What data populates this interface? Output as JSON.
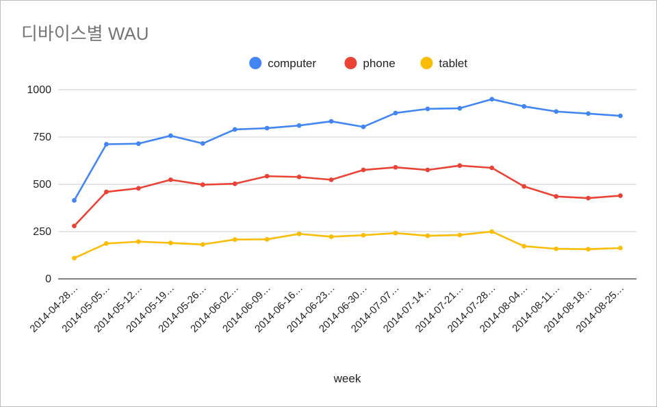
{
  "title": "디바이스별 WAU",
  "chart_data": {
    "type": "line",
    "title": "디바이스별 WAU",
    "xlabel": "week",
    "ylabel": "",
    "ylim": [
      0,
      1000
    ],
    "yticks": [
      "0",
      "250",
      "500",
      "750",
      "1000"
    ],
    "grid": true,
    "legend_position": "top",
    "categories": [
      "2014-04-28…",
      "2014-05-05…",
      "2014-05-12…",
      "2014-05-19…",
      "2014-05-26…",
      "2014-06-02…",
      "2014-06-09…",
      "2014-06-16…",
      "2014-06-23…",
      "2014-06-30…",
      "2014-07-07…",
      "2014-07-14…",
      "2014-07-21…",
      "2014-07-28…",
      "2014-08-04…",
      "2014-08-11…",
      "2014-08-18…",
      "2014-08-25…"
    ],
    "series": [
      {
        "name": "computer",
        "color": "#4285f4",
        "values": [
          415,
          712,
          715,
          757,
          716,
          790,
          797,
          811,
          833,
          804,
          877,
          899,
          902,
          950,
          912,
          885,
          874,
          862
        ]
      },
      {
        "name": "phone",
        "color": "#ea4335",
        "values": [
          280,
          460,
          479,
          524,
          498,
          503,
          543,
          539,
          524,
          576,
          590,
          576,
          599,
          587,
          489,
          436,
          427,
          440
        ]
      },
      {
        "name": "tablet",
        "color": "#fbbc04",
        "values": [
          110,
          187,
          197,
          190,
          182,
          208,
          209,
          238,
          223,
          231,
          242,
          228,
          232,
          250,
          173,
          159,
          157,
          163
        ]
      }
    ]
  }
}
